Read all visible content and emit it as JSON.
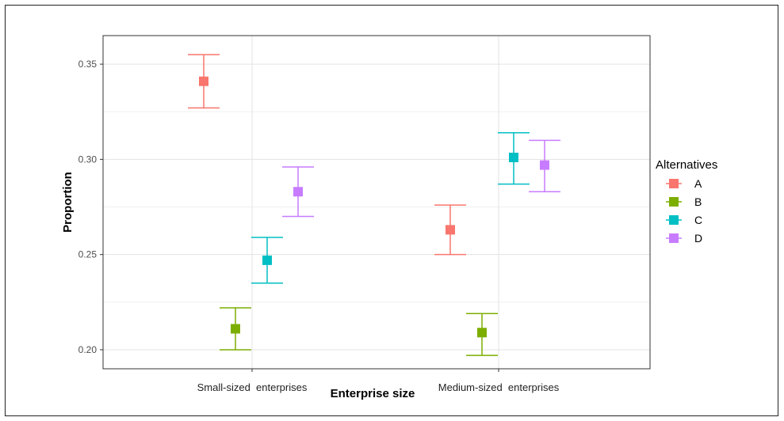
{
  "chart_data": {
    "type": "scatter",
    "xlabel": "Enterprise size",
    "ylabel": "Proportion",
    "categories": [
      "Small-sized  enterprises",
      "Medium-sized  enterprises"
    ],
    "ylim": [
      0.19,
      0.365
    ],
    "yticks": [
      "0.20",
      "0.25",
      "0.30",
      "0.35"
    ],
    "grid": true,
    "legend": {
      "title": "Alternatives",
      "placement": "right"
    },
    "series": [
      {
        "name": "A",
        "color": "#F8766D",
        "values": [
          0.341,
          0.263
        ],
        "lower": [
          0.327,
          0.25
        ],
        "upper": [
          0.355,
          0.276
        ]
      },
      {
        "name": "B",
        "color": "#7CAE00",
        "values": [
          0.211,
          0.209
        ],
        "lower": [
          0.2,
          0.197
        ],
        "upper": [
          0.222,
          0.219
        ]
      },
      {
        "name": "C",
        "color": "#00BFC4",
        "values": [
          0.247,
          0.301
        ],
        "lower": [
          0.235,
          0.287
        ],
        "upper": [
          0.259,
          0.314
        ]
      },
      {
        "name": "D",
        "color": "#C77CFF",
        "values": [
          0.283,
          0.297
        ],
        "lower": [
          0.27,
          0.283
        ],
        "upper": [
          0.296,
          0.31
        ]
      }
    ]
  }
}
